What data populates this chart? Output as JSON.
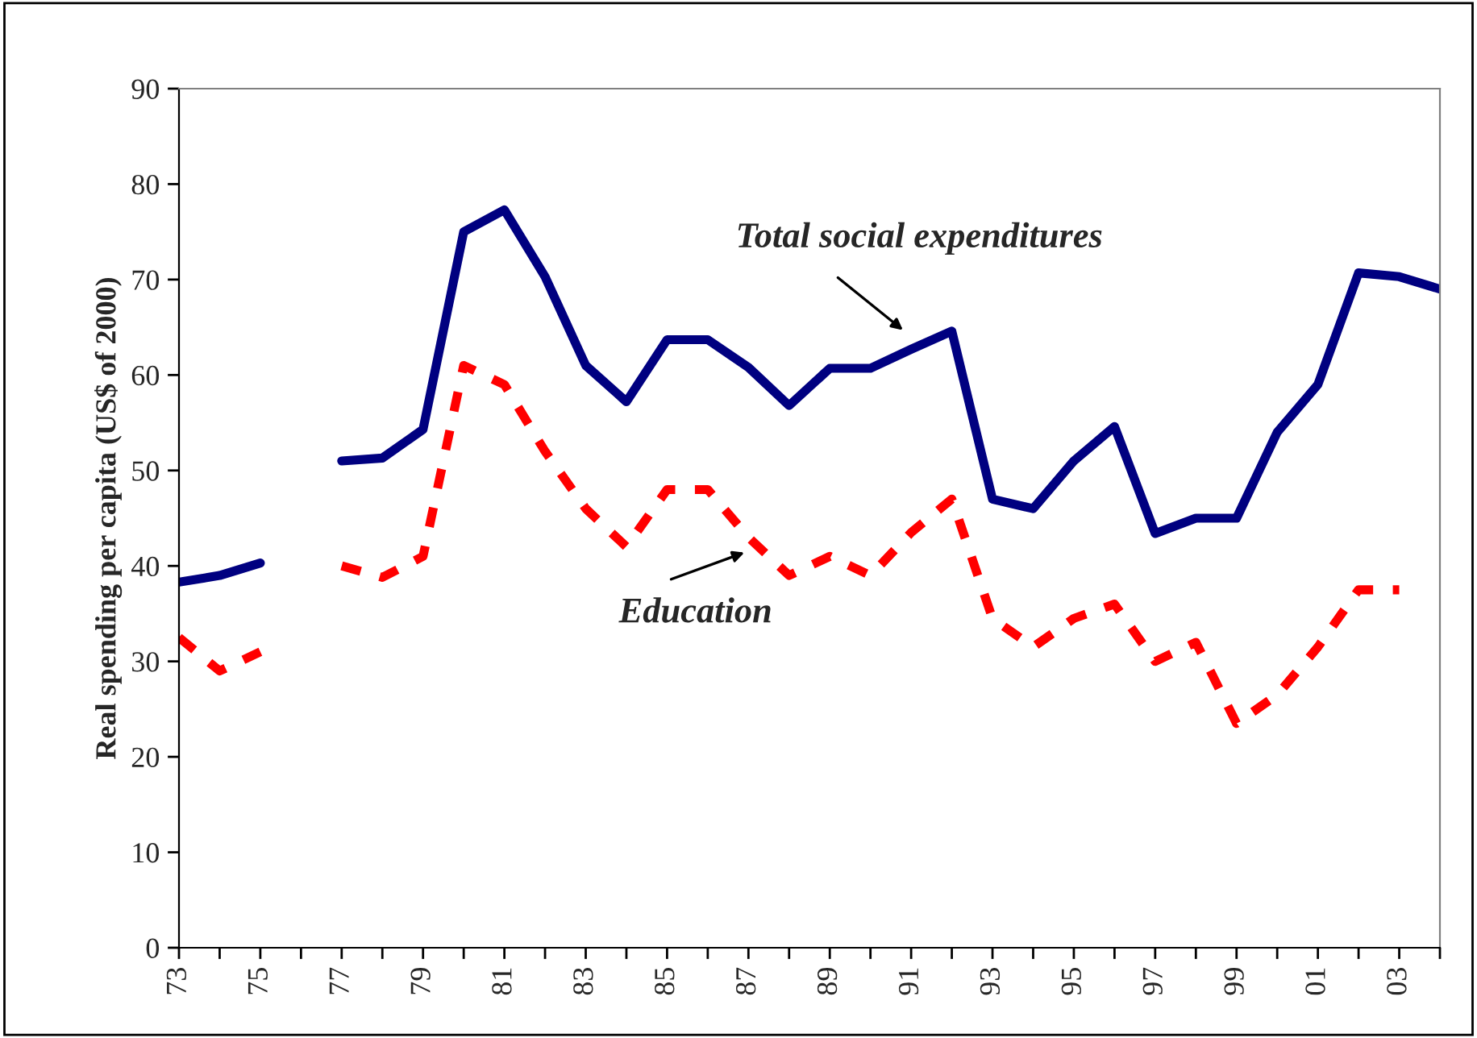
{
  "chart_data": {
    "type": "line",
    "ylabel": "Real spending per capita (US$ of 2000)",
    "categories": [
      "73",
      null,
      "75",
      null,
      "77",
      null,
      "79",
      null,
      "81",
      null,
      "83",
      null,
      "85",
      null,
      "87",
      null,
      "89",
      null,
      "91",
      null,
      "93",
      null,
      "95",
      null,
      "97",
      null,
      "99",
      null,
      "01",
      null,
      "03",
      null
    ],
    "series": [
      {
        "name": "Total social expenditures",
        "color": "#000080",
        "line_style": "solid",
        "values": [
          38.3,
          39,
          40.3,
          null,
          51,
          51.3,
          54.3,
          75,
          77.3,
          70.3,
          61,
          57.2,
          63.7,
          63.7,
          60.8,
          56.8,
          60.7,
          60.7,
          62.7,
          64.6,
          47,
          46,
          51,
          54.6,
          43.4,
          45,
          45,
          54,
          59,
          70.7,
          70.3,
          69
        ]
      },
      {
        "name": "Education",
        "color": "#ff0000",
        "line_style": "dashed",
        "values": [
          32.5,
          29,
          31,
          null,
          40,
          38.8,
          41,
          61,
          59,
          52,
          46,
          42,
          48,
          48,
          43,
          39,
          41,
          39,
          43.5,
          47,
          34.5,
          31.5,
          34.5,
          36,
          30,
          32,
          23.5,
          26.5,
          31.5,
          37.5,
          37.5,
          null
        ]
      }
    ],
    "ylim": [
      0,
      90
    ],
    "yticks": [
      0,
      10,
      20,
      30,
      40,
      50,
      60,
      70,
      80,
      90
    ],
    "grid": false,
    "legend": false,
    "marker": "none"
  }
}
